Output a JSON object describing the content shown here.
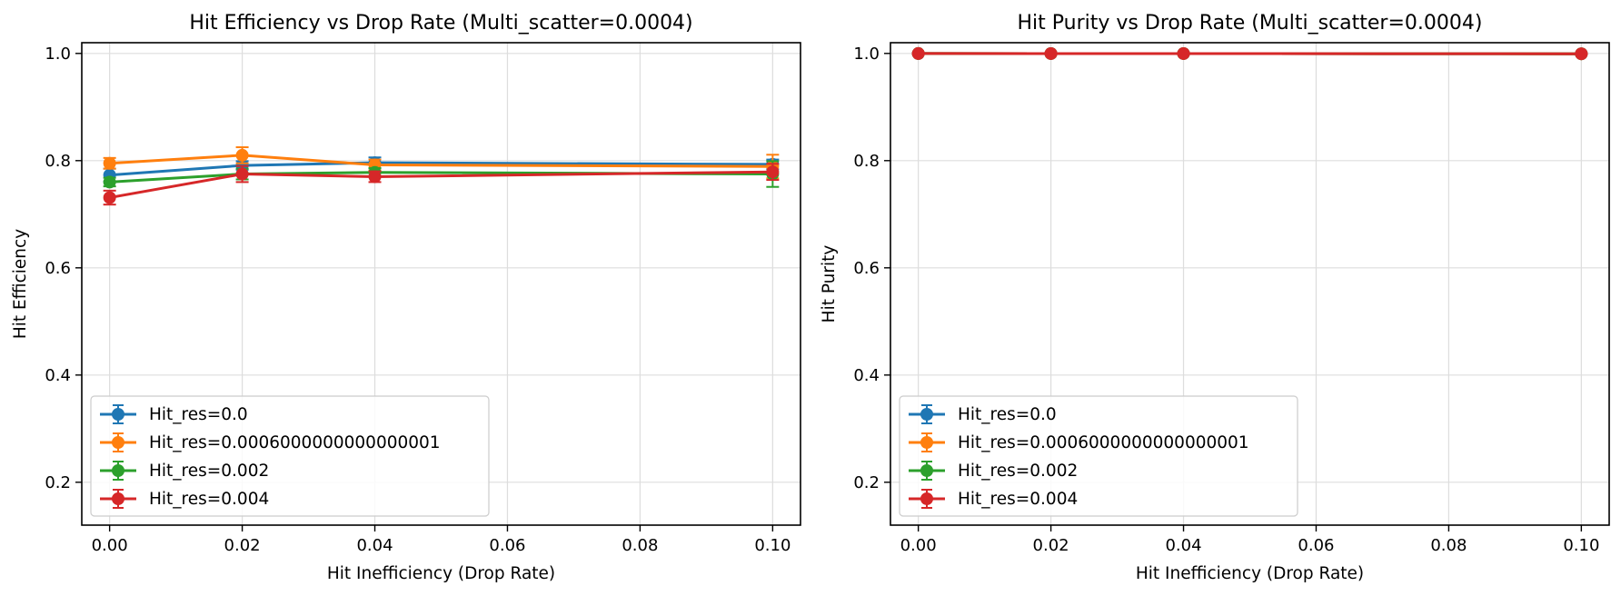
{
  "chart_data": [
    {
      "type": "line",
      "title": "Hit Efficiency vs Drop Rate (Multi_scatter=0.0004)",
      "xlabel": "Hit Inefficiency (Drop Rate)",
      "ylabel": "Hit Efficiency",
      "xlim": [
        -0.0042,
        0.1042
      ],
      "ylim": [
        0.12,
        1.02
      ],
      "xticks": [
        0.0,
        0.02,
        0.04,
        0.06,
        0.08,
        0.1
      ],
      "xtick_labels": [
        "0.00",
        "0.02",
        "0.04",
        "0.06",
        "0.08",
        "0.10"
      ],
      "yticks": [
        0.2,
        0.4,
        0.6,
        0.8,
        1.0
      ],
      "ytick_labels": [
        "0.2",
        "0.4",
        "0.6",
        "0.8",
        "1.0"
      ],
      "grid": true,
      "legend_position": "lower-left",
      "x": [
        0.0,
        0.02,
        0.04,
        0.1
      ],
      "series": [
        {
          "name": "Hit_res=0.0",
          "color": "#1f77b4",
          "values": [
            0.773,
            0.791,
            0.796,
            0.793
          ],
          "errors": [
            0.012,
            0.008,
            0.01,
            0.009
          ]
        },
        {
          "name": "Hit_res=0.0006000000000000001",
          "color": "#ff7f0e",
          "values": [
            0.795,
            0.81,
            0.792,
            0.789
          ],
          "errors": [
            0.01,
            0.015,
            0.01,
            0.022
          ]
        },
        {
          "name": "Hit_res=0.002",
          "color": "#2ca02c",
          "values": [
            0.76,
            0.775,
            0.778,
            0.775
          ],
          "errors": [
            0.008,
            0.01,
            0.008,
            0.024
          ]
        },
        {
          "name": "Hit_res=0.004",
          "color": "#d62728",
          "values": [
            0.731,
            0.775,
            0.77,
            0.779
          ],
          "errors": [
            0.013,
            0.015,
            0.01,
            0.015
          ]
        }
      ]
    },
    {
      "type": "line",
      "title": "Hit Purity vs Drop Rate (Multi_scatter=0.0004)",
      "xlabel": "Hit Inefficiency (Drop Rate)",
      "ylabel": "Hit Purity",
      "xlim": [
        -0.0042,
        0.1042
      ],
      "ylim": [
        0.12,
        1.02
      ],
      "xticks": [
        0.0,
        0.02,
        0.04,
        0.06,
        0.08,
        0.1
      ],
      "xtick_labels": [
        "0.00",
        "0.02",
        "0.04",
        "0.06",
        "0.08",
        "0.10"
      ],
      "yticks": [
        0.2,
        0.4,
        0.6,
        0.8,
        1.0
      ],
      "ytick_labels": [
        "0.2",
        "0.4",
        "0.6",
        "0.8",
        "1.0"
      ],
      "grid": true,
      "legend_position": "lower-left",
      "x": [
        0.0,
        0.02,
        0.04,
        0.1
      ],
      "series": [
        {
          "name": "Hit_res=0.0",
          "color": "#1f77b4",
          "values": [
            0.9998,
            0.9997,
            0.9997,
            0.9993
          ],
          "errors": [
            0.0005,
            0.0005,
            0.0005,
            0.0005
          ]
        },
        {
          "name": "Hit_res=0.0006000000000000001",
          "color": "#ff7f0e",
          "values": [
            0.9998,
            0.9997,
            0.9997,
            0.9993
          ],
          "errors": [
            0.0005,
            0.0005,
            0.0005,
            0.0005
          ]
        },
        {
          "name": "Hit_res=0.002",
          "color": "#2ca02c",
          "values": [
            0.9998,
            0.9997,
            0.9997,
            0.9993
          ],
          "errors": [
            0.0005,
            0.0005,
            0.0005,
            0.0005
          ]
        },
        {
          "name": "Hit_res=0.004",
          "color": "#d62728",
          "values": [
            0.9998,
            0.9997,
            0.9997,
            0.9993
          ],
          "errors": [
            0.0005,
            0.0005,
            0.0005,
            0.0005
          ]
        }
      ]
    }
  ]
}
